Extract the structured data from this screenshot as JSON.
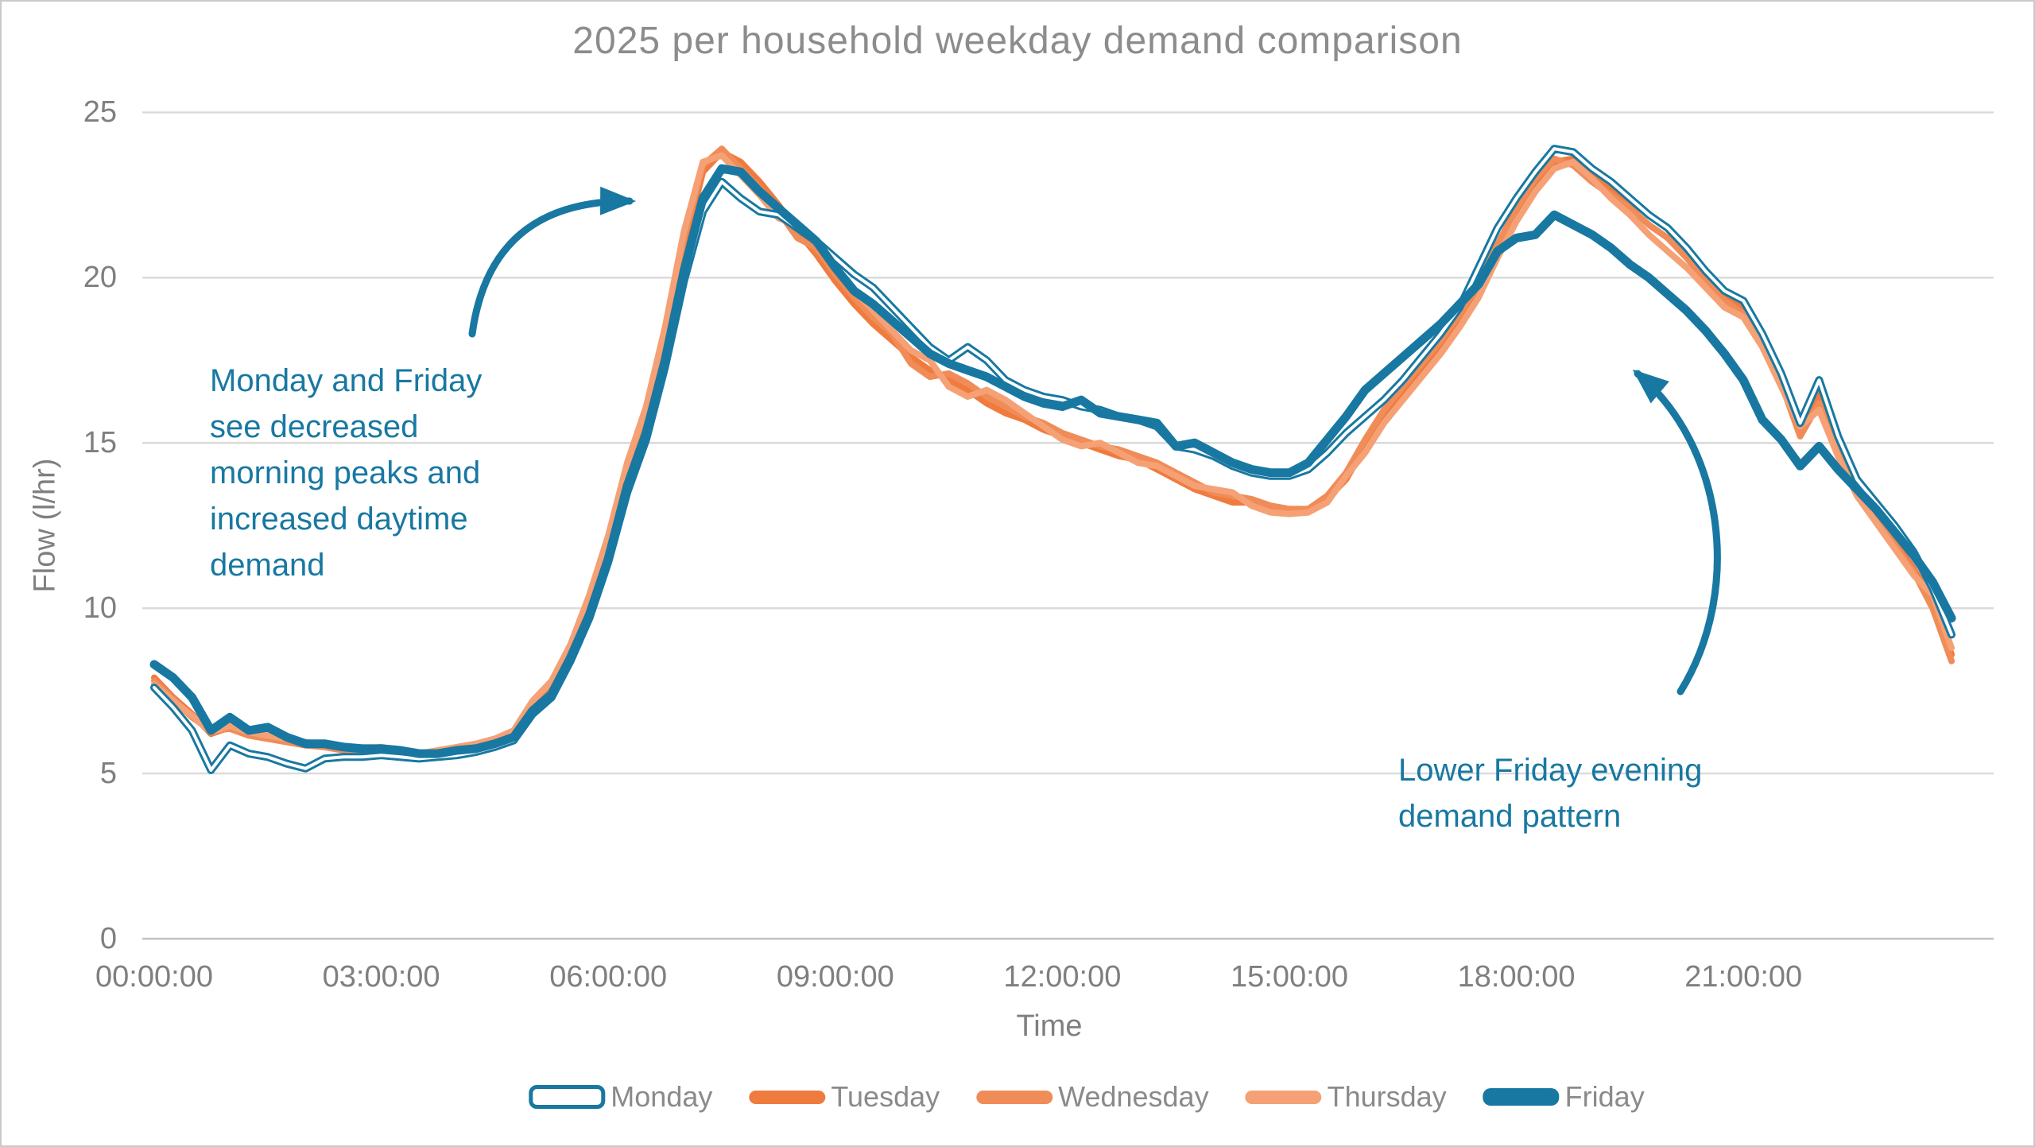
{
  "title": "2025 per household weekday demand comparison",
  "axes": {
    "y_title": "Flow (l/hr)",
    "x_title": "Time",
    "y_ticks": [
      0,
      5,
      10,
      15,
      20,
      25
    ],
    "x_ticks": [
      "00:00:00",
      "03:00:00",
      "06:00:00",
      "09:00:00",
      "12:00:00",
      "15:00:00",
      "18:00:00",
      "21:00:00"
    ]
  },
  "annotations": {
    "morning": {
      "text": "Monday and Friday\nsee decreased\nmorning peaks and\nincreased daytime\ndemand"
    },
    "evening": {
      "text": "Lower Friday evening\ndemand pattern"
    }
  },
  "colors": {
    "teal": "#1878a1",
    "orange_dark": "#ef7b3f",
    "orange_mid": "#f08c58",
    "orange_light": "#f5a175",
    "grid": "#dadada",
    "axis_line": "#c2c2c2",
    "text_gray": "#7f7f7f",
    "title_gray": "#8c8c8c"
  },
  "chart_data": {
    "type": "line",
    "title": "2025 per household weekday demand comparison",
    "xlabel": "Time",
    "ylabel": "Flow (l/hr)",
    "ylim": [
      0,
      25
    ],
    "grid": "horizontal",
    "legend_position": "bottom",
    "x_start_hour": 0,
    "x_step_hours": 0.25,
    "x_end_hour": 23.75,
    "x_tick_labels": [
      "00:00:00",
      "03:00:00",
      "06:00:00",
      "09:00:00",
      "12:00:00",
      "15:00:00",
      "18:00:00",
      "21:00:00"
    ],
    "series": [
      {
        "name": "Tuesday",
        "color": "#ef7b3f",
        "style": "solid",
        "width": 8,
        "values": [
          7.9,
          7.3,
          6.8,
          6.2,
          6.4,
          6.2,
          6.1,
          6.0,
          5.9,
          5.8,
          5.75,
          5.7,
          5.75,
          5.6,
          5.5,
          5.6,
          5.7,
          5.8,
          5.95,
          6.2,
          7.0,
          7.6,
          8.7,
          10.0,
          11.8,
          14.0,
          15.6,
          17.9,
          20.9,
          23.2,
          23.8,
          23.5,
          22.9,
          22.2,
          21.4,
          20.7,
          19.9,
          19.2,
          18.6,
          18.1,
          17.6,
          17.2,
          16.9,
          16.6,
          16.2,
          15.9,
          15.7,
          15.4,
          15.2,
          15.0,
          14.8,
          14.6,
          14.5,
          14.2,
          13.9,
          13.6,
          13.4,
          13.2,
          13.2,
          13.0,
          12.9,
          12.9,
          13.3,
          13.9,
          14.9,
          15.8,
          16.5,
          17.2,
          17.9,
          18.7,
          19.6,
          20.8,
          21.9,
          22.8,
          23.5,
          23.6,
          23.1,
          22.7,
          22.3,
          21.9,
          21.5,
          20.8,
          20.1,
          19.4,
          19.1,
          18.2,
          17.0,
          15.4,
          16.5,
          15.0,
          13.6,
          12.8,
          12.0,
          11.2,
          10.2,
          8.6
        ]
      },
      {
        "name": "Wednesday",
        "color": "#f08c58",
        "style": "solid",
        "width": 8,
        "values": [
          7.8,
          7.25,
          6.7,
          6.3,
          6.35,
          6.15,
          6.05,
          5.95,
          5.85,
          5.8,
          5.7,
          5.65,
          5.7,
          5.65,
          5.55,
          5.65,
          5.75,
          5.85,
          6.0,
          6.25,
          7.1,
          7.7,
          8.8,
          10.2,
          12.0,
          14.2,
          15.9,
          18.2,
          21.2,
          23.4,
          23.9,
          23.3,
          22.7,
          22.0,
          21.2,
          20.9,
          20.1,
          19.4,
          18.8,
          18.3,
          17.4,
          17.0,
          17.1,
          16.8,
          16.4,
          16.1,
          15.8,
          15.6,
          15.3,
          15.1,
          14.9,
          14.8,
          14.6,
          14.4,
          14.1,
          13.8,
          13.5,
          13.4,
          13.3,
          13.1,
          13.0,
          13.0,
          13.4,
          14.1,
          15.1,
          16.0,
          16.7,
          17.4,
          18.1,
          18.9,
          19.8,
          21.0,
          22.1,
          23.0,
          23.6,
          23.4,
          22.9,
          22.5,
          22.1,
          21.6,
          21.2,
          20.6,
          19.9,
          19.3,
          18.9,
          18.0,
          16.8,
          15.2,
          16.2,
          14.8,
          13.5,
          12.7,
          11.9,
          11.1,
          10.0,
          8.4
        ]
      },
      {
        "name": "Thursday",
        "color": "#f5a175",
        "style": "solid",
        "width": 8,
        "values": [
          7.7,
          7.2,
          6.75,
          6.25,
          6.45,
          6.25,
          6.15,
          6.05,
          5.95,
          5.85,
          5.8,
          5.75,
          5.8,
          5.7,
          5.6,
          5.7,
          5.8,
          5.9,
          6.05,
          6.3,
          7.2,
          7.8,
          8.9,
          10.4,
          12.2,
          14.4,
          16.1,
          18.5,
          21.4,
          23.5,
          23.7,
          23.1,
          22.5,
          21.8,
          21.6,
          21.1,
          20.3,
          19.6,
          19.0,
          18.4,
          17.8,
          17.5,
          16.7,
          16.4,
          16.6,
          16.3,
          15.9,
          15.5,
          15.1,
          14.9,
          15.0,
          14.7,
          14.4,
          14.3,
          14.0,
          13.7,
          13.6,
          13.5,
          13.1,
          12.9,
          12.85,
          12.9,
          13.2,
          14.0,
          14.7,
          15.6,
          16.3,
          17.0,
          17.7,
          18.5,
          19.4,
          20.6,
          21.7,
          22.6,
          23.3,
          23.5,
          23.0,
          22.4,
          21.9,
          21.3,
          20.8,
          20.3,
          19.7,
          19.1,
          18.8,
          17.9,
          16.7,
          15.5,
          16.0,
          14.6,
          13.4,
          12.6,
          11.8,
          11.0,
          10.4,
          8.8
        ]
      },
      {
        "name": "Monday",
        "color": "#1878a1",
        "style": "hollow",
        "width": 10,
        "values": [
          7.6,
          7.0,
          6.3,
          5.1,
          5.85,
          5.6,
          5.5,
          5.3,
          5.15,
          5.45,
          5.5,
          5.5,
          5.55,
          5.5,
          5.45,
          5.5,
          5.55,
          5.65,
          5.8,
          6.0,
          6.8,
          7.3,
          8.4,
          9.7,
          11.4,
          13.5,
          15.1,
          17.3,
          19.9,
          22.0,
          22.9,
          22.4,
          22.0,
          21.9,
          21.5,
          21.1,
          20.6,
          20.1,
          19.7,
          19.1,
          18.5,
          17.9,
          17.5,
          17.9,
          17.5,
          16.9,
          16.6,
          16.4,
          16.3,
          16.1,
          16.0,
          15.8,
          15.7,
          15.5,
          14.9,
          14.8,
          14.6,
          14.3,
          14.1,
          14.0,
          14.0,
          14.2,
          14.7,
          15.3,
          15.8,
          16.3,
          16.9,
          17.6,
          18.3,
          19.1,
          20.3,
          21.5,
          22.4,
          23.2,
          23.9,
          23.8,
          23.3,
          22.9,
          22.4,
          21.9,
          21.5,
          20.9,
          20.2,
          19.6,
          19.3,
          18.3,
          17.1,
          15.6,
          16.9,
          15.2,
          13.9,
          13.2,
          12.5,
          11.7,
          10.6,
          9.2
        ]
      },
      {
        "name": "Friday",
        "color": "#1878a1",
        "style": "solid",
        "width": 11,
        "values": [
          8.3,
          7.9,
          7.3,
          6.3,
          6.7,
          6.3,
          6.4,
          6.1,
          5.9,
          5.9,
          5.8,
          5.75,
          5.75,
          5.7,
          5.6,
          5.6,
          5.7,
          5.75,
          5.9,
          6.1,
          6.9,
          7.4,
          8.5,
          9.8,
          11.5,
          13.7,
          15.3,
          17.5,
          20.2,
          22.4,
          23.3,
          23.2,
          22.6,
          22.1,
          21.6,
          21.1,
          20.3,
          19.6,
          19.2,
          18.7,
          18.2,
          17.7,
          17.4,
          17.2,
          17.0,
          16.7,
          16.4,
          16.2,
          16.1,
          16.3,
          15.9,
          15.8,
          15.7,
          15.6,
          14.9,
          15.0,
          14.7,
          14.4,
          14.2,
          14.1,
          14.1,
          14.4,
          15.1,
          15.8,
          16.6,
          17.1,
          17.6,
          18.1,
          18.6,
          19.2,
          19.8,
          20.8,
          21.2,
          21.3,
          21.9,
          21.6,
          21.3,
          20.9,
          20.4,
          20.0,
          19.5,
          19.0,
          18.4,
          17.7,
          16.9,
          15.7,
          15.1,
          14.3,
          14.9,
          14.2,
          13.6,
          13.0,
          12.3,
          11.6,
          10.8,
          9.7
        ]
      }
    ]
  },
  "legend": {
    "items": [
      {
        "label": "Monday",
        "swatch": "hollow-teal"
      },
      {
        "label": "Tuesday",
        "swatch": "orange"
      },
      {
        "label": "Wednesday",
        "swatch": "orange"
      },
      {
        "label": "Thursday",
        "swatch": "orange"
      },
      {
        "label": "Friday",
        "swatch": "thick-teal"
      }
    ]
  }
}
